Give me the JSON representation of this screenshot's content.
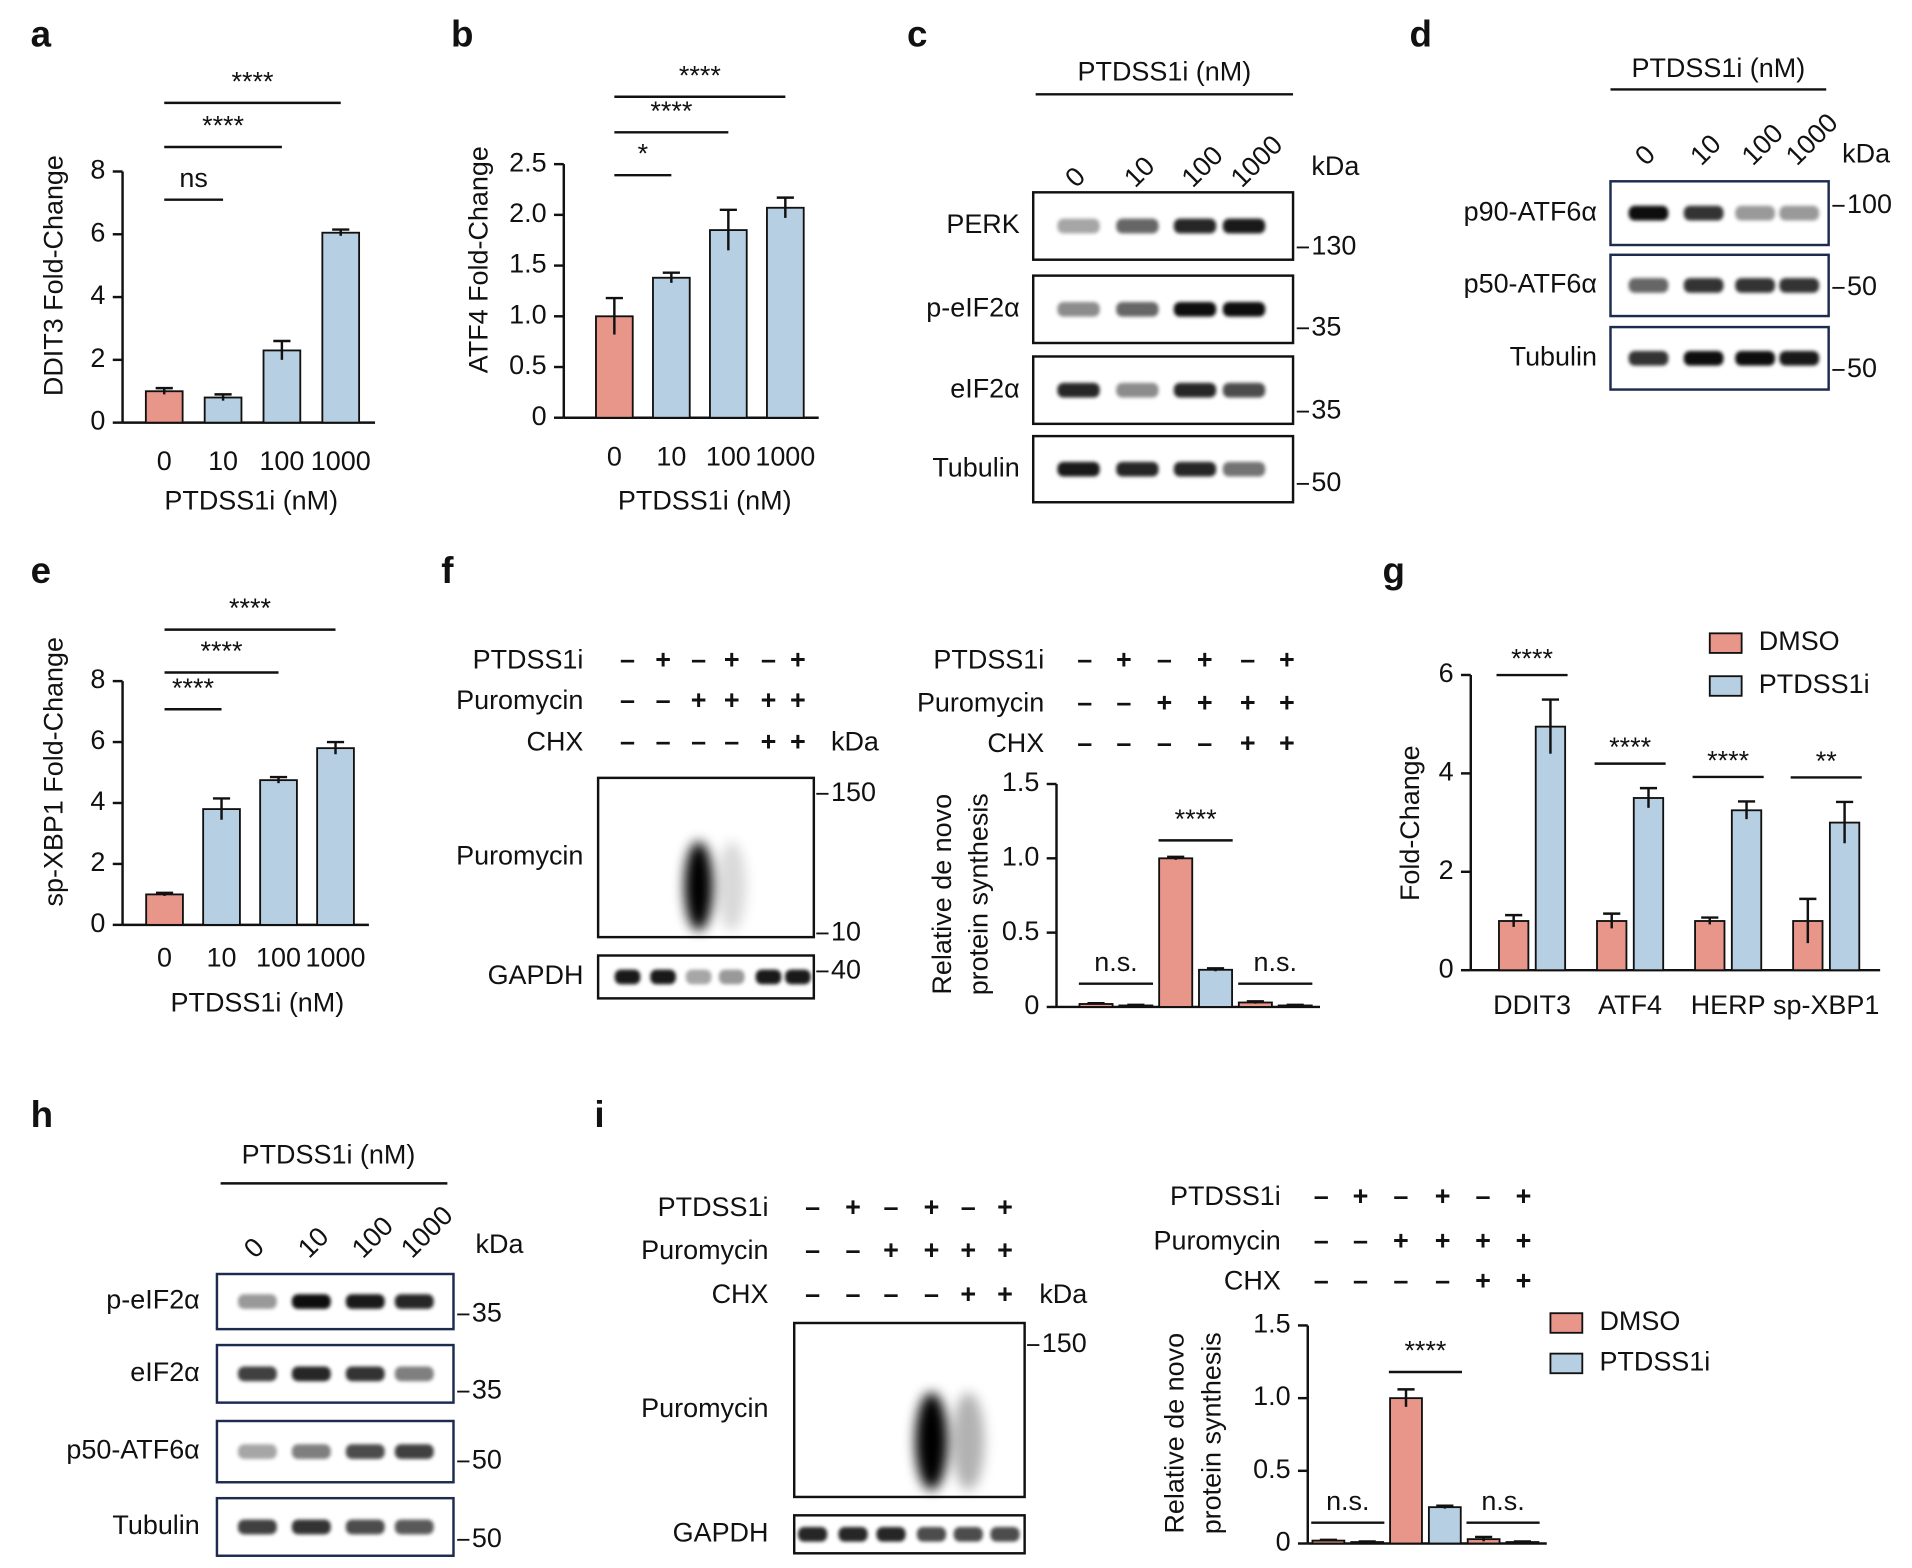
{
  "panel_letters": [
    "a",
    "b",
    "c",
    "d",
    "e",
    "f",
    "g",
    "h",
    "i"
  ],
  "chart_data": [
    {
      "type": "bar",
      "ylabel": "DDIT3 Fold-Change",
      "xlabel": "PTDSS1i (nM)",
      "categories": [
        "0",
        "10",
        "100",
        "1000"
      ],
      "values": [
        1.0,
        0.8,
        2.3,
        6.05
      ],
      "errors": [
        0.1,
        0.1,
        0.3,
        0.1
      ],
      "colors": [
        "#e8958a",
        "#b6cfe2",
        "#b6cfe2",
        "#b6cfe2"
      ],
      "ylim": [
        0,
        8
      ],
      "yticks": [
        0,
        2,
        4,
        6,
        8
      ],
      "significance": [
        {
          "pair": [
            0,
            1
          ],
          "label": "ns"
        },
        {
          "pair": [
            0,
            2
          ],
          "label": "****"
        },
        {
          "pair": [
            0,
            3
          ],
          "label": "****"
        }
      ]
    },
    {
      "type": "bar",
      "ylabel": "ATF4 Fold-Change",
      "xlabel": "PTDSS1i (nM)",
      "categories": [
        "0",
        "10",
        "100",
        "1000"
      ],
      "values": [
        1.0,
        1.38,
        1.85,
        2.07
      ],
      "errors": [
        0.18,
        0.05,
        0.2,
        0.1
      ],
      "colors": [
        "#e8958a",
        "#b6cfe2",
        "#b6cfe2",
        "#b6cfe2"
      ],
      "ylim": [
        0,
        2.5
      ],
      "yticks": [
        0,
        0.5,
        {
          "value": 1,
          "label": "1.0"
        },
        1.5,
        {
          "value": 2,
          "label": "2.0"
        },
        2.5
      ],
      "significance": [
        {
          "pair": [
            0,
            1
          ],
          "label": "*"
        },
        {
          "pair": [
            0,
            2
          ],
          "label": "****"
        },
        {
          "pair": [
            0,
            3
          ],
          "label": "****"
        }
      ]
    },
    {
      "type": "bar",
      "ylabel": "sp-XBP1 Fold-Change",
      "xlabel": "PTDSS1i (nM)",
      "categories": [
        "0",
        "10",
        "100",
        "1000"
      ],
      "values": [
        1.0,
        3.8,
        4.75,
        5.8
      ],
      "errors": [
        0.05,
        0.35,
        0.1,
        0.2
      ],
      "colors": [
        "#e8958a",
        "#b6cfe2",
        "#b6cfe2",
        "#b6cfe2"
      ],
      "ylim": [
        0,
        8
      ],
      "yticks": [
        0,
        2,
        4,
        6,
        8
      ],
      "significance": [
        {
          "pair": [
            0,
            1
          ],
          "label": "****"
        },
        {
          "pair": [
            0,
            2
          ],
          "label": "****"
        },
        {
          "pair": [
            0,
            3
          ],
          "label": "****"
        }
      ]
    },
    {
      "type": "bar",
      "ylabel": [
        "Relative de novo",
        "protein synthesis"
      ],
      "conditions": [
        {
          "name": "PTDSS1i",
          "marks": [
            "–",
            "+",
            "–",
            "+",
            "–",
            "+"
          ]
        },
        {
          "name": "Puromycin",
          "marks": [
            "–",
            "–",
            "+",
            "+",
            "+",
            "+"
          ]
        },
        {
          "name": "CHX",
          "marks": [
            "–",
            "–",
            "–",
            "–",
            "+",
            "+"
          ]
        }
      ],
      "values": [
        0.02,
        0.01,
        1.0,
        0.25,
        0.03,
        0.01
      ],
      "errors": [
        0.005,
        0.004,
        0.01,
        0.01,
        0.008,
        0.004
      ],
      "colors": [
        "#e8958a",
        "#b6cfe2",
        "#e8958a",
        "#b6cfe2",
        "#e8958a",
        "#b6cfe2"
      ],
      "ylim": [
        0,
        1.5
      ],
      "yticks": [
        0,
        0.5,
        {
          "value": 1,
          "label": "1.0"
        },
        1.5
      ],
      "significance": [
        {
          "pair": [
            0,
            1
          ],
          "label": "n.s."
        },
        {
          "pair": [
            2,
            3
          ],
          "label": "****"
        },
        {
          "pair": [
            4,
            5
          ],
          "label": "n.s."
        }
      ]
    },
    {
      "type": "grouped-bar",
      "ylabel": "Fold-Change",
      "categories": [
        "DDIT3",
        "ATF4",
        "HERP",
        "sp-XBP1"
      ],
      "series": [
        {
          "name": "DMSO",
          "color": "#e8958a",
          "values": [
            1.0,
            1.0,
            1.0,
            1.0
          ],
          "errors": [
            0.12,
            0.15,
            0.07,
            0.45
          ]
        },
        {
          "name": "PTDSS1i",
          "color": "#b6cfe2",
          "values": [
            4.95,
            3.5,
            3.25,
            3.0
          ],
          "errors": [
            0.55,
            0.2,
            0.18,
            0.42
          ]
        }
      ],
      "ylim": [
        0,
        6
      ],
      "yticks": [
        0,
        2,
        4,
        6
      ],
      "legend": "upper right",
      "significance": [
        "****",
        "****",
        "****",
        "**"
      ]
    },
    {
      "type": "bar",
      "ylabel": [
        "Relative de novo",
        "protein synthesis"
      ],
      "conditions": [
        {
          "name": "PTDSS1i",
          "marks": [
            "–",
            "+",
            "–",
            "+",
            "–",
            "+"
          ]
        },
        {
          "name": "Puromycin",
          "marks": [
            "–",
            "–",
            "+",
            "+",
            "+",
            "+"
          ]
        },
        {
          "name": "CHX",
          "marks": [
            "–",
            "–",
            "–",
            "–",
            "+",
            "+"
          ]
        }
      ],
      "values": [
        0.02,
        0.01,
        1.0,
        0.25,
        0.03,
        0.01
      ],
      "errors": [
        0.005,
        0.004,
        0.06,
        0.01,
        0.015,
        0.004
      ],
      "colors": [
        "#e8958a",
        "#b6cfe2",
        "#e8958a",
        "#b6cfe2",
        "#e8958a",
        "#b6cfe2"
      ],
      "ylim": [
        0,
        1.5
      ],
      "yticks": [
        0,
        0.5,
        {
          "value": 1,
          "label": "1.0"
        },
        1.5
      ],
      "legend": [
        {
          "name": "DMSO",
          "color": "#e8958a"
        },
        {
          "name": "PTDSS1i",
          "color": "#b6cfe2"
        }
      ],
      "significance": [
        {
          "pair": [
            0,
            1
          ],
          "label": "n.s."
        },
        {
          "pair": [
            2,
            3
          ],
          "label": "****"
        },
        {
          "pair": [
            4,
            5
          ],
          "label": "n.s."
        }
      ]
    }
  ],
  "blots": [
    {
      "title": "PTDSS1i (nM)",
      "lanes": [
        "0",
        "10",
        "100",
        "1000"
      ],
      "unit": "kDa",
      "rows": [
        {
          "label": "PERK",
          "markers": [
            130
          ],
          "bands": [
            0.35,
            0.6,
            0.85,
            0.9
          ]
        },
        {
          "label": "p-eIF2α",
          "markers": [
            35
          ],
          "bands": [
            0.45,
            0.6,
            0.95,
            0.95
          ]
        },
        {
          "label": "eIF2α",
          "markers": [
            35
          ],
          "bands": [
            0.85,
            0.45,
            0.85,
            0.7
          ]
        },
        {
          "label": "Tubulin",
          "markers": [
            50
          ],
          "bands": [
            0.9,
            0.85,
            0.85,
            0.55
          ]
        }
      ]
    },
    {
      "title": "PTDSS1i (nM)",
      "lanes": [
        "0",
        "10",
        "100",
        "1000"
      ],
      "unit": "kDa",
      "rows": [
        {
          "label": "p90-ATF6α",
          "markers": [
            100
          ],
          "bands": [
            0.95,
            0.8,
            0.4,
            0.4
          ]
        },
        {
          "label": "p50-ATF6α",
          "markers": [
            50
          ],
          "bands": [
            0.6,
            0.8,
            0.8,
            0.8
          ]
        },
        {
          "label": "Tubulin",
          "markers": [
            50
          ],
          "bands": [
            0.8,
            0.95,
            0.95,
            0.9
          ]
        }
      ]
    },
    {
      "conditions": [
        {
          "name": "PTDSS1i",
          "marks": [
            "–",
            "+",
            "–",
            "+",
            "–",
            "+"
          ]
        },
        {
          "name": "Puromycin",
          "marks": [
            "–",
            "–",
            "+",
            "+",
            "+",
            "+"
          ]
        },
        {
          "name": "CHX",
          "marks": [
            "–",
            "–",
            "–",
            "–",
            "+",
            "+"
          ]
        }
      ],
      "unit": "kDa",
      "rows": [
        {
          "label": "Puromycin",
          "markers": [
            150,
            10
          ],
          "bands": [
            0,
            0,
            1,
            0.15,
            0,
            0
          ]
        },
        {
          "label": "GAPDH",
          "markers": [
            40
          ],
          "bands": [
            0.9,
            0.9,
            0.35,
            0.4,
            0.9,
            0.9
          ]
        }
      ]
    },
    {
      "title": "PTDSS1i (nM)",
      "lanes": [
        "0",
        "10",
        "100",
        "1000"
      ],
      "unit": "kDa",
      "rows": [
        {
          "label": "p-eIF2α",
          "markers": [
            35
          ],
          "bands": [
            0.4,
            0.95,
            0.9,
            0.85
          ]
        },
        {
          "label": "eIF2α",
          "markers": [
            35
          ],
          "bands": [
            0.75,
            0.85,
            0.8,
            0.5
          ]
        },
        {
          "label": "p50-ATF6α",
          "markers": [
            50
          ],
          "bands": [
            0.35,
            0.5,
            0.7,
            0.75
          ]
        },
        {
          "label": "Tubulin",
          "markers": [
            50
          ],
          "bands": [
            0.75,
            0.8,
            0.7,
            0.65
          ]
        }
      ]
    },
    {
      "conditions": [
        {
          "name": "PTDSS1i",
          "marks": [
            "–",
            "+",
            "–",
            "+",
            "–",
            "+"
          ]
        },
        {
          "name": "Puromycin",
          "marks": [
            "–",
            "–",
            "+",
            "+",
            "+",
            "+"
          ]
        },
        {
          "name": "CHX",
          "marks": [
            "–",
            "–",
            "–",
            "–",
            "+",
            "+"
          ]
        }
      ],
      "unit": "kDa",
      "rows": [
        {
          "label": "Puromycin",
          "markers": [
            150
          ],
          "bands": [
            0,
            0,
            0,
            1,
            0.3,
            0
          ]
        },
        {
          "label": "GAPDH",
          "markers": [],
          "bands": [
            0.85,
            0.85,
            0.85,
            0.7,
            0.7,
            0.7
          ]
        }
      ]
    }
  ]
}
